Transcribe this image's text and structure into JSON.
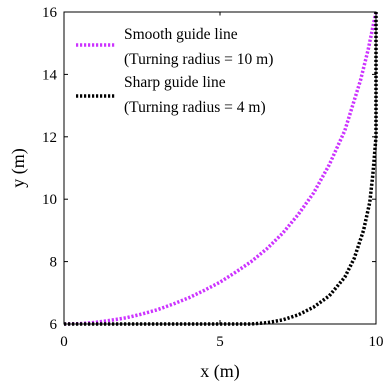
{
  "chart_data": {
    "type": "line",
    "xlabel": "x (m)",
    "ylabel": "y (m)",
    "xlim": [
      0,
      10
    ],
    "ylim": [
      6,
      16
    ],
    "xticks": [
      0,
      5,
      10
    ],
    "yticks": [
      6,
      8,
      10,
      12,
      14,
      16
    ],
    "grid": false,
    "legend": {
      "placement": "top-left",
      "entries": [
        {
          "line1": "Smooth guide line",
          "line2": "(Turning radius = 10 m)"
        },
        {
          "line1": "Sharp guide line",
          "line2": "(Turning radius = 4 m)"
        }
      ]
    },
    "series": [
      {
        "color": "#cc33ff",
        "style": "dotted",
        "x": [
          0,
          0.5,
          1,
          1.5,
          2,
          2.5,
          3,
          3.5,
          4,
          4.5,
          5,
          5.5,
          6,
          6.5,
          7,
          7.5,
          8,
          8.5,
          9,
          9.5,
          9.75,
          10
        ],
        "y": [
          6.0,
          6.01,
          6.05,
          6.12,
          6.2,
          6.32,
          6.46,
          6.64,
          6.84,
          7.08,
          7.34,
          7.66,
          8.0,
          8.41,
          8.9,
          9.5,
          10.2,
          11.1,
          12.2,
          13.8,
          14.8,
          16.0
        ]
      },
      {
        "color": "#000000",
        "style": "dotted",
        "x": [
          0,
          6,
          6.5,
          7,
          7.5,
          8,
          8.5,
          9,
          9.3,
          9.6,
          9.8,
          9.9,
          10,
          10
        ],
        "y": [
          6.0,
          6.0,
          6.04,
          6.13,
          6.29,
          6.54,
          6.9,
          7.5,
          8.1,
          9.0,
          9.9,
          10.8,
          12.0,
          16.0
        ]
      }
    ]
  }
}
